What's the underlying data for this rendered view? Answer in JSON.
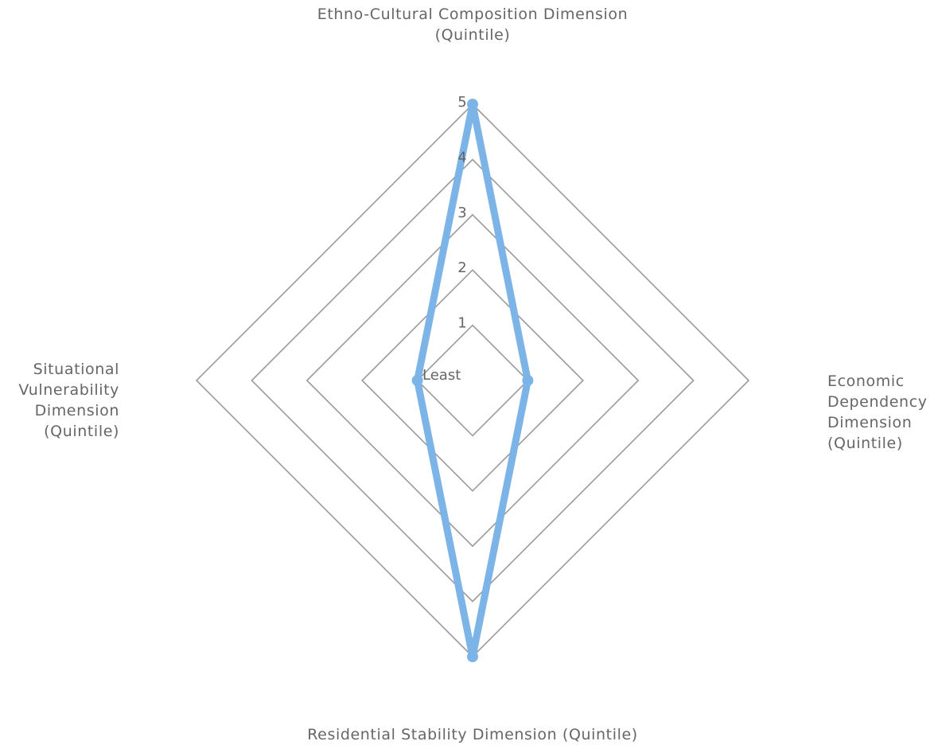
{
  "chart_data": {
    "type": "radar",
    "axes": [
      {
        "label_lines": [
          "Ethno-Cultural Composition Dimension",
          "(Quintile)"
        ]
      },
      {
        "label_lines": [
          "Economic",
          "Dependency",
          "Dimension",
          "(Quintile)"
        ]
      },
      {
        "label_lines": [
          "Residential Stability Dimension (Quintile)"
        ]
      },
      {
        "label_lines": [
          "Situational",
          "Vulnerability",
          "Dimension",
          "(Quintile)"
        ]
      }
    ],
    "scale": {
      "min": 0,
      "max": 5,
      "ticks": [
        {
          "value": 0,
          "label": "Least"
        },
        {
          "value": 1,
          "label": "1"
        },
        {
          "value": 2,
          "label": "2"
        },
        {
          "value": 3,
          "label": "3"
        },
        {
          "value": 4,
          "label": "4"
        },
        {
          "value": 5,
          "label": "5"
        }
      ]
    },
    "series": [
      {
        "values": [
          5,
          1,
          5,
          1
        ]
      }
    ],
    "colors": {
      "series": "#7db4e8",
      "grid": "#9a9a9a",
      "text": "#666666"
    }
  }
}
